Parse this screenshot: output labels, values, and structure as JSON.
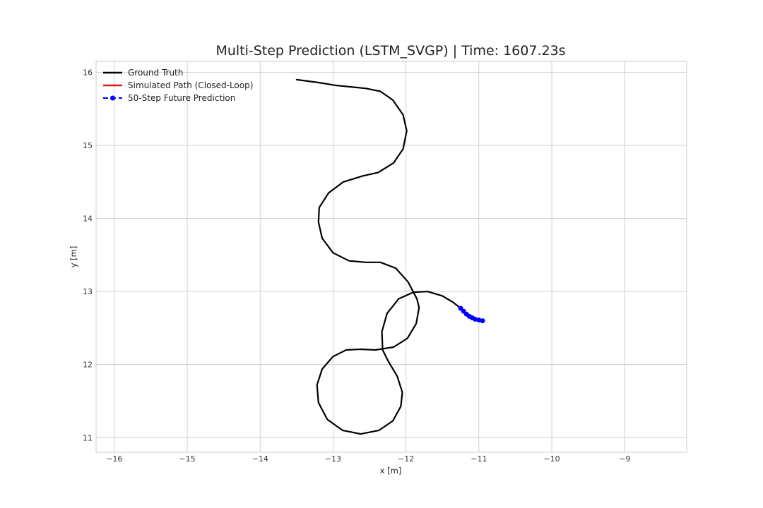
{
  "chart_data": {
    "type": "line",
    "title": "Multi-Step Prediction (LSTM_SVGP) | Time: 1607.23s",
    "xlabel": "x [m]",
    "ylabel": "y [m]",
    "xlim": [
      -16.25,
      -8.15
    ],
    "ylim": [
      10.8,
      16.15
    ],
    "xticks": [
      -16,
      -15,
      -14,
      -13,
      -12,
      -11,
      -10,
      -9
    ],
    "yticks": [
      11,
      12,
      13,
      14,
      15,
      16
    ],
    "xtick_labels": [
      "−16",
      "−15",
      "−14",
      "−13",
      "−12",
      "−11",
      "−10",
      "−9"
    ],
    "ytick_labels": [
      "11",
      "12",
      "13",
      "14",
      "15",
      "16"
    ],
    "grid": true,
    "legend_position": "upper-left",
    "series": [
      {
        "name": "Ground Truth",
        "color": "#000000",
        "style": "solid",
        "points": [
          [
            -13.5,
            15.9
          ],
          [
            -13.2,
            15.86
          ],
          [
            -12.95,
            15.82
          ],
          [
            -12.55,
            15.78
          ],
          [
            -12.35,
            15.74
          ],
          [
            -12.18,
            15.62
          ],
          [
            -12.04,
            15.42
          ],
          [
            -11.99,
            15.2
          ],
          [
            -12.04,
            14.95
          ],
          [
            -12.17,
            14.76
          ],
          [
            -12.38,
            14.63
          ],
          [
            -12.6,
            14.58
          ],
          [
            -12.86,
            14.5
          ],
          [
            -13.06,
            14.35
          ],
          [
            -13.19,
            14.15
          ],
          [
            -13.2,
            13.95
          ],
          [
            -13.15,
            13.73
          ],
          [
            -13.0,
            13.53
          ],
          [
            -12.78,
            13.42
          ],
          [
            -12.55,
            13.4
          ],
          [
            -12.35,
            13.4
          ],
          [
            -12.14,
            13.32
          ],
          [
            -11.97,
            13.13
          ],
          [
            -11.85,
            12.9
          ],
          [
            -11.82,
            12.78
          ],
          [
            -11.86,
            12.56
          ],
          [
            -11.98,
            12.36
          ],
          [
            -12.17,
            12.24
          ],
          [
            -12.42,
            12.2
          ],
          [
            -12.62,
            12.21
          ],
          [
            -12.82,
            12.2
          ],
          [
            -13.0,
            12.11
          ],
          [
            -13.15,
            11.94
          ],
          [
            -13.22,
            11.72
          ],
          [
            -13.2,
            11.48
          ],
          [
            -13.08,
            11.25
          ],
          [
            -12.87,
            11.1
          ],
          [
            -12.62,
            11.05
          ],
          [
            -12.37,
            11.1
          ],
          [
            -12.18,
            11.23
          ],
          [
            -12.07,
            11.43
          ],
          [
            -12.05,
            11.62
          ],
          [
            -12.12,
            11.84
          ],
          [
            -12.24,
            12.04
          ],
          [
            -12.32,
            12.2
          ],
          [
            -12.33,
            12.45
          ],
          [
            -12.26,
            12.7
          ],
          [
            -12.1,
            12.9
          ],
          [
            -11.9,
            12.99
          ],
          [
            -11.7,
            13.0
          ],
          [
            -11.5,
            12.94
          ],
          [
            -11.35,
            12.85
          ],
          [
            -11.25,
            12.77
          ]
        ]
      },
      {
        "name": "Simulated Path (Closed-Loop)",
        "color": "#e31a1c",
        "style": "solid",
        "points": []
      },
      {
        "name": "50-Step Future Prediction",
        "color": "#0000ff",
        "style": "dashed-dot",
        "points": [
          [
            -11.25,
            12.77
          ],
          [
            -11.21,
            12.73
          ],
          [
            -11.17,
            12.69
          ],
          [
            -11.13,
            12.66
          ],
          [
            -11.09,
            12.64
          ],
          [
            -11.05,
            12.62
          ],
          [
            -11.0,
            12.61
          ],
          [
            -10.95,
            12.6
          ]
        ]
      }
    ]
  }
}
